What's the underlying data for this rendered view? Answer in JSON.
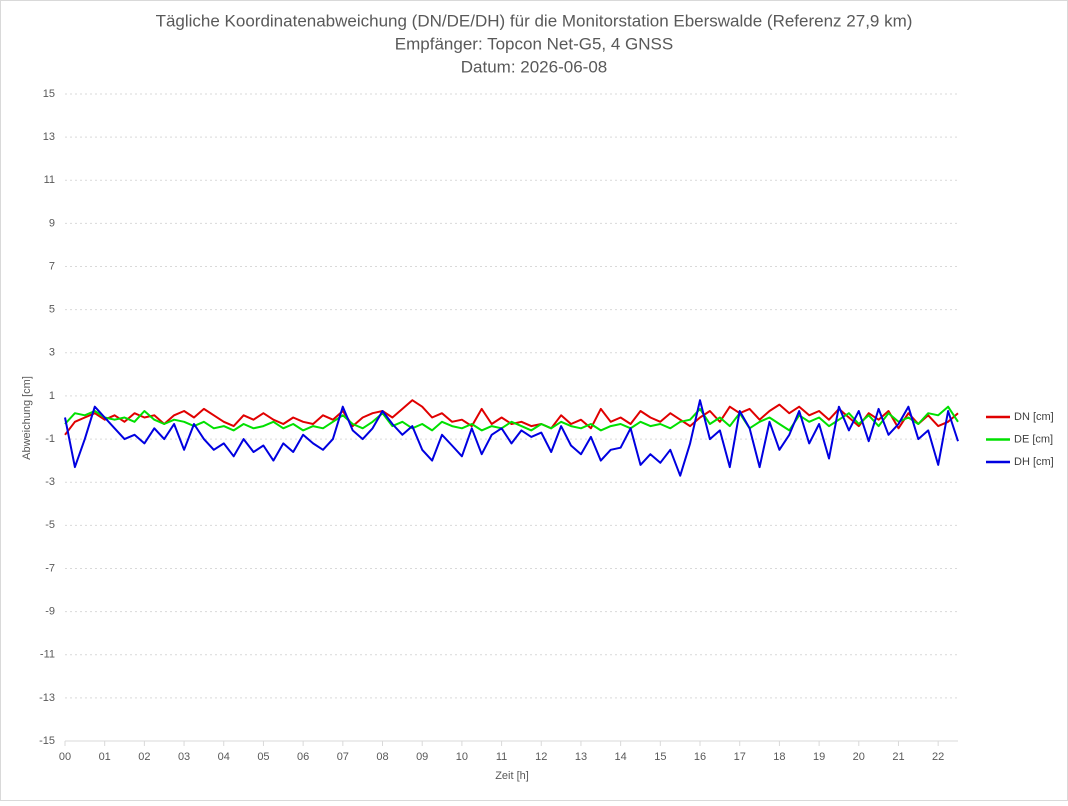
{
  "chart_data": {
    "type": "line",
    "title_lines": [
      "Tägliche Koordinatenabweichung (DN/DE/DH) für die Monitorstation Eberswalde (Referenz 27,9 km)",
      "Empfänger: Topcon Net-G5, 4 GNSS",
      "Datum: 2026-06-08"
    ],
    "y_label": "Abweichung [cm]",
    "x_label": "Zeit [h]",
    "xlim": [
      0,
      22.5
    ],
    "ylim": [
      -15,
      15
    ],
    "xticks": [
      {
        "value": 0,
        "label": "00"
      },
      {
        "value": 1,
        "label": "01"
      },
      {
        "value": 2,
        "label": "02"
      },
      {
        "value": 3,
        "label": "03"
      },
      {
        "value": 4,
        "label": "04"
      },
      {
        "value": 5,
        "label": "05"
      },
      {
        "value": 6,
        "label": "06"
      },
      {
        "value": 7,
        "label": "07"
      },
      {
        "value": 8,
        "label": "08"
      },
      {
        "value": 9,
        "label": "09"
      },
      10,
      11,
      12,
      13,
      14,
      15,
      16,
      17,
      18,
      19,
      20,
      21,
      22
    ],
    "yticks": [
      -15,
      -13,
      -11,
      -9,
      -7,
      -5,
      -3,
      -1,
      1,
      3,
      5,
      7,
      9,
      11,
      13,
      15
    ],
    "grid": true,
    "legend": "right",
    "x": [
      0,
      0.25,
      0.5,
      0.75,
      1,
      1.25,
      1.5,
      1.75,
      2,
      2.25,
      2.5,
      2.75,
      3,
      3.25,
      3.5,
      3.75,
      4,
      4.25,
      4.5,
      4.75,
      5,
      5.25,
      5.5,
      5.75,
      6,
      6.25,
      6.5,
      6.75,
      7,
      7.25,
      7.5,
      7.75,
      8,
      8.25,
      8.5,
      8.75,
      9,
      9.25,
      9.5,
      9.75,
      10,
      10.25,
      10.5,
      10.75,
      11,
      11.25,
      11.5,
      11.75,
      12,
      12.25,
      12.5,
      12.75,
      13,
      13.25,
      13.5,
      13.75,
      14,
      14.25,
      14.5,
      14.75,
      15,
      15.25,
      15.5,
      15.75,
      16,
      16.25,
      16.5,
      16.75,
      17,
      17.25,
      17.5,
      17.75,
      18,
      18.25,
      18.5,
      18.75,
      19,
      19.25,
      19.5,
      19.75,
      20,
      20.25,
      20.5,
      20.75,
      21,
      21.25,
      21.5,
      21.75,
      22,
      22.25,
      22.5
    ],
    "series": [
      {
        "name": "DN [cm]",
        "color": "#e00000",
        "values": [
          -0.8,
          -0.2,
          0,
          0.2,
          -0.1,
          0.1,
          -0.2,
          0.2,
          0,
          0.1,
          -0.3,
          0.1,
          0.3,
          0,
          0.4,
          0.1,
          -0.2,
          -0.4,
          0.1,
          -0.1,
          0.2,
          -0.1,
          -0.3,
          0,
          -0.2,
          -0.3,
          0.1,
          -0.1,
          0.3,
          -0.4,
          0,
          0.2,
          0.3,
          0,
          0.4,
          0.8,
          0.5,
          0,
          0.2,
          -0.2,
          -0.1,
          -0.4,
          0.4,
          -0.3,
          0,
          -0.3,
          -0.2,
          -0.4,
          -0.3,
          -0.5,
          0.1,
          -0.3,
          -0.1,
          -0.5,
          0.4,
          -0.2,
          0,
          -0.3,
          0.3,
          0,
          -0.2,
          0.2,
          -0.1,
          -0.4,
          0,
          0.3,
          -0.2,
          0.5,
          0.2,
          0.4,
          -0.1,
          0.3,
          0.6,
          0.2,
          0.5,
          0.1,
          0.3,
          -0.1,
          0.4,
          0,
          -0.4,
          0.2,
          -0.1,
          0.3,
          -0.5,
          0.2,
          -0.3,
          0.1,
          -0.4,
          -0.2,
          0.2
        ]
      },
      {
        "name": "DE [cm]",
        "color": "#00e000",
        "values": [
          -0.3,
          0.2,
          0.1,
          0.3,
          0,
          -0.1,
          0,
          -0.2,
          0.3,
          -0.1,
          -0.3,
          -0.1,
          -0.2,
          -0.4,
          -0.2,
          -0.5,
          -0.4,
          -0.6,
          -0.3,
          -0.5,
          -0.4,
          -0.2,
          -0.5,
          -0.3,
          -0.6,
          -0.4,
          -0.5,
          -0.2,
          0.1,
          -0.3,
          -0.5,
          -0.2,
          0.2,
          -0.4,
          -0.2,
          -0.5,
          -0.3,
          -0.6,
          -0.2,
          -0.4,
          -0.5,
          -0.3,
          -0.6,
          -0.4,
          -0.5,
          -0.2,
          -0.4,
          -0.6,
          -0.3,
          -0.5,
          -0.2,
          -0.4,
          -0.5,
          -0.3,
          -0.6,
          -0.4,
          -0.3,
          -0.5,
          -0.2,
          -0.4,
          -0.3,
          -0.5,
          -0.2,
          -0.1,
          0.4,
          -0.3,
          0,
          -0.4,
          0.2,
          -0.5,
          -0.2,
          0,
          -0.3,
          -0.6,
          0.1,
          -0.2,
          0,
          -0.4,
          -0.1,
          0.2,
          -0.3,
          0.1,
          -0.4,
          0.2,
          -0.2,
          0,
          -0.3,
          0.2,
          0.1,
          0.5,
          -0.2
        ]
      },
      {
        "name": "DH [cm]",
        "color": "#0000e0",
        "values": [
          0,
          -2.3,
          -1,
          0.5,
          0,
          -0.5,
          -1,
          -0.8,
          -1.2,
          -0.5,
          -1,
          -0.3,
          -1.5,
          -0.3,
          -1,
          -1.5,
          -1.2,
          -1.8,
          -1,
          -1.6,
          -1.3,
          -2,
          -1.2,
          -1.6,
          -0.8,
          -1.2,
          -1.5,
          -1,
          0.5,
          -0.6,
          -1,
          -0.5,
          0.3,
          -0.3,
          -0.8,
          -0.4,
          -1.5,
          -2,
          -0.8,
          -1.3,
          -1.8,
          -0.5,
          -1.7,
          -0.8,
          -0.5,
          -1.2,
          -0.6,
          -0.9,
          -0.7,
          -1.6,
          -0.4,
          -1.3,
          -1.7,
          -0.9,
          -2,
          -1.5,
          -1.4,
          -0.5,
          -2.2,
          -1.7,
          -2.1,
          -1.5,
          -2.7,
          -1.2,
          0.8,
          -1,
          -0.6,
          -2.3,
          0.3,
          -0.5,
          -2.3,
          -0.2,
          -1.5,
          -0.8,
          0.3,
          -1.2,
          -0.3,
          -1.9,
          0.5,
          -0.6,
          0.3,
          -1.1,
          0.4,
          -0.8,
          -0.3,
          0.5,
          -1,
          -0.6,
          -2.2,
          0.3,
          -1.1
        ]
      }
    ]
  }
}
